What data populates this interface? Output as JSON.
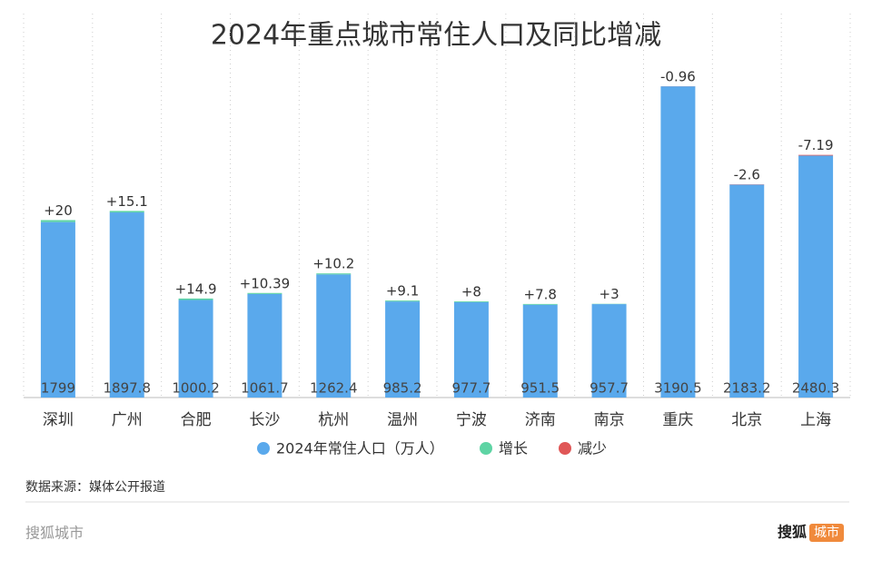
{
  "chart_data": {
    "type": "bar",
    "stacked": true,
    "title": "2024年重点城市常住人口及同比增减",
    "categories": [
      "深圳",
      "广州",
      "合肥",
      "长沙",
      "杭州",
      "温州",
      "宁波",
      "济南",
      "南京",
      "重庆",
      "北京",
      "上海"
    ],
    "series": [
      {
        "name": "2024年常住人口（万人）",
        "color": "#5aa9ec",
        "values": [
          1799,
          1897.8,
          1000.2,
          1061.7,
          1262.4,
          985.2,
          977.7,
          951.5,
          957.7,
          3190.5,
          2183.2,
          2480.3
        ]
      },
      {
        "name": "增长",
        "color": "#5ed4a4",
        "values": [
          20,
          15.1,
          14.9,
          10.39,
          10.2,
          9.1,
          8,
          7.8,
          3,
          null,
          null,
          null
        ],
        "value_labels": [
          "+20",
          "+15.1",
          "+14.9",
          "+10.39",
          "+10.2",
          "+9.1",
          "+8",
          "+7.8",
          "+3",
          null,
          null,
          null
        ]
      },
      {
        "name": "减少",
        "color": "#e05757",
        "values": [
          null,
          null,
          null,
          null,
          null,
          null,
          null,
          null,
          null,
          -0.96,
          -2.6,
          -7.19
        ]
      }
    ]
  },
  "source": "数据来源：媒体公开报道",
  "brand": "搜狐城市",
  "logo": {
    "text": "搜狐",
    "badge": "城市"
  }
}
